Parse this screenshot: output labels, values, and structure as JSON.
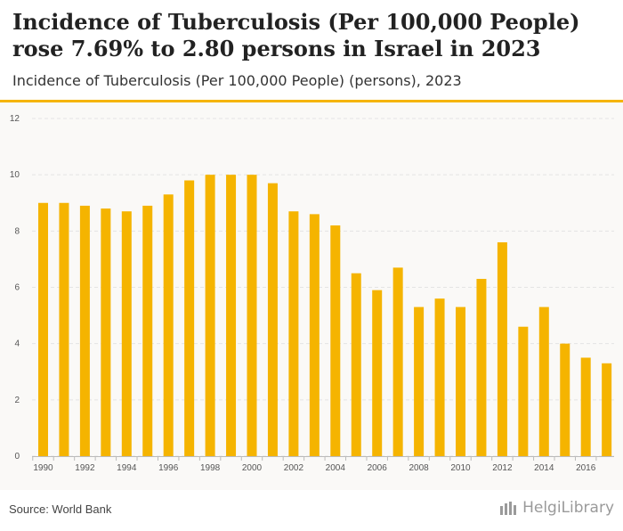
{
  "header": {
    "title": "Incidence of Tuberculosis (Per 100,000 People) rose 7.69% to 2.80 persons in Israel in 2023",
    "subtitle": "Incidence of Tuberculosis (Per 100,000 People) (persons), 2023"
  },
  "footer": {
    "source": "Source: World Bank",
    "brand": "HelgiLibrary"
  },
  "colors": {
    "bar": "#f5b400",
    "accent": "#f5b400",
    "grid": "#e4e4e4"
  },
  "chart_data": {
    "type": "bar",
    "title": "Incidence of Tuberculosis (Per 100,000 People) (persons), 2023",
    "xlabel": "",
    "ylabel": "",
    "ylim": [
      0,
      12
    ],
    "yticks": [
      0,
      2,
      4,
      6,
      8,
      10,
      12
    ],
    "categories": [
      "1990",
      "1991",
      "1992",
      "1993",
      "1994",
      "1995",
      "1996",
      "1997",
      "1998",
      "1999",
      "2000",
      "2001",
      "2002",
      "2003",
      "2004",
      "2005",
      "2006",
      "2007",
      "2008",
      "2009",
      "2010",
      "2011",
      "2012",
      "2013",
      "2014",
      "2015",
      "2016",
      "2017"
    ],
    "xtick_labels": [
      "1990",
      "1992",
      "1994",
      "1996",
      "1998",
      "2000",
      "2002",
      "2004",
      "2006",
      "2008",
      "2010",
      "2012",
      "2014",
      "2016"
    ],
    "values": [
      9.0,
      9.0,
      8.9,
      8.8,
      8.7,
      8.9,
      9.3,
      9.8,
      10.0,
      10.0,
      10.0,
      9.7,
      8.7,
      8.6,
      8.2,
      6.5,
      5.9,
      6.7,
      5.3,
      5.6,
      5.3,
      6.3,
      7.6,
      4.6,
      5.3,
      4.0,
      3.5,
      3.3
    ],
    "grid": true
  }
}
